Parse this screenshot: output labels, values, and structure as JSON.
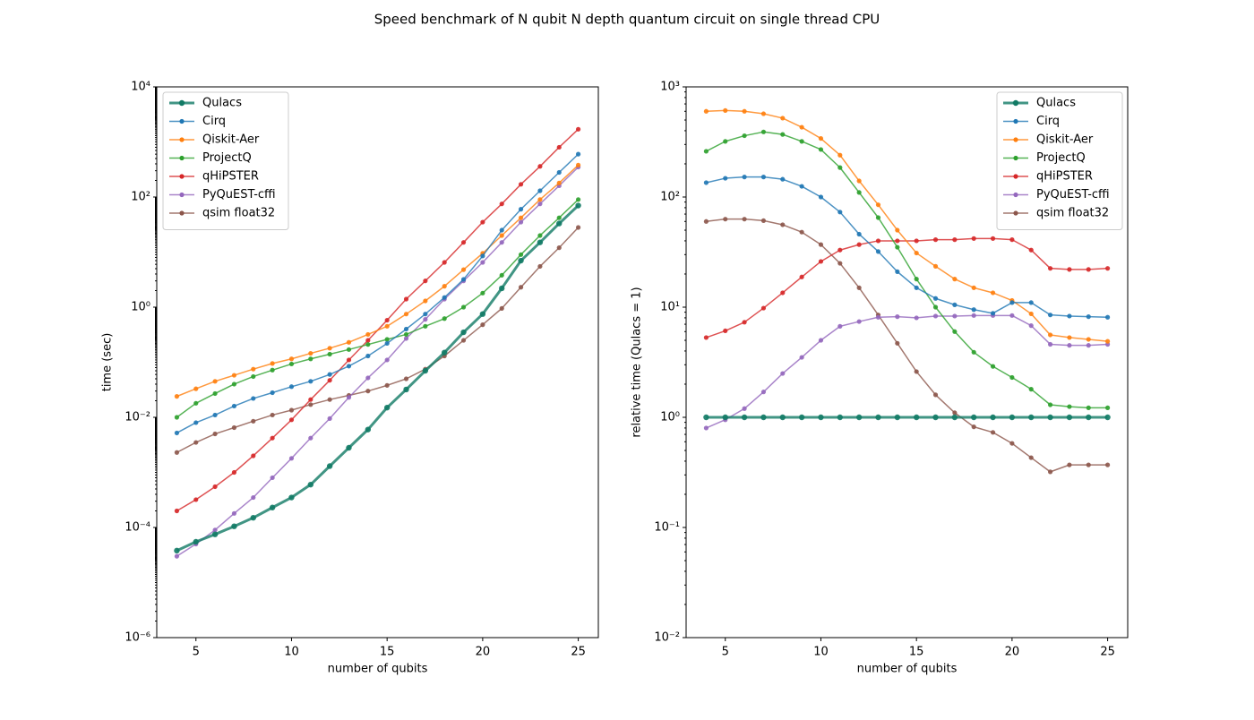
{
  "title": "Speed benchmark of N qubit N depth quantum circuit on single thread CPU",
  "chart_data": [
    {
      "type": "line",
      "log_y": true,
      "legend": "upper left",
      "xlabel": "number of qubits",
      "ylabel": "time (sec)",
      "x": [
        4,
        5,
        6,
        7,
        8,
        9,
        10,
        11,
        12,
        13,
        14,
        15,
        16,
        17,
        18,
        19,
        20,
        21,
        22,
        23,
        24,
        25
      ],
      "xlim": [
        2.95,
        26.05
      ],
      "xticks": [
        5,
        10,
        15,
        20,
        25
      ],
      "ylim": [
        1e-06,
        10000
      ],
      "yticks": [
        {
          "value": 1e-06,
          "label": "10⁻⁶"
        },
        {
          "value": 0.0001,
          "label": "10⁻⁴"
        },
        {
          "value": 0.01,
          "label": "10⁻²"
        },
        {
          "value": 1,
          "label": "10⁰"
        },
        {
          "value": 100,
          "label": "10²"
        },
        {
          "value": 10000,
          "label": "10⁴"
        }
      ],
      "series": [
        {
          "name": "Qulacs",
          "color": "#117a65",
          "line_width": 3,
          "values": [
            3.8e-05,
            5.5e-05,
            7.5e-05,
            0.000105,
            0.00015,
            0.00023,
            0.00035,
            0.0006,
            0.0013,
            0.0028,
            0.006,
            0.015,
            0.032,
            0.07,
            0.15,
            0.35,
            0.75,
            2.2,
            7,
            15,
            33,
            70
          ]
        },
        {
          "name": "Cirq",
          "color": "#1f77b4",
          "line_width": 1.5,
          "values": [
            0.0052,
            0.008,
            0.011,
            0.016,
            0.022,
            0.028,
            0.036,
            0.045,
            0.06,
            0.085,
            0.13,
            0.22,
            0.4,
            0.75,
            1.5,
            3.2,
            8.5,
            25,
            60,
            130,
            280,
            600
          ]
        },
        {
          "name": "Qiskit-Aer",
          "color": "#ff7f0e",
          "line_width": 1.5,
          "values": [
            0.024,
            0.033,
            0.045,
            0.058,
            0.075,
            0.095,
            0.115,
            0.145,
            0.18,
            0.23,
            0.32,
            0.45,
            0.75,
            1.3,
            2.4,
            4.8,
            9.5,
            20,
            42,
            90,
            180,
            380
          ]
        },
        {
          "name": "ProjectQ",
          "color": "#2ca02c",
          "line_width": 1.5,
          "values": [
            0.01,
            0.018,
            0.027,
            0.04,
            0.055,
            0.072,
            0.093,
            0.115,
            0.14,
            0.17,
            0.21,
            0.26,
            0.32,
            0.45,
            0.62,
            1.0,
            1.8,
            3.8,
            9,
            20,
            42,
            90
          ]
        },
        {
          "name": "qHiPSTER",
          "color": "#d62728",
          "line_width": 1.5,
          "values": [
            0.0002,
            0.00032,
            0.00055,
            0.001,
            0.002,
            0.0042,
            0.009,
            0.021,
            0.047,
            0.11,
            0.25,
            0.58,
            1.4,
            3,
            6.5,
            15,
            35,
            75,
            170,
            360,
            800,
            1700
          ]
        },
        {
          "name": "PyQuEST-cffi",
          "color": "#9467bd",
          "line_width": 1.5,
          "values": [
            3e-05,
            5e-05,
            9e-05,
            0.00018,
            0.00035,
            0.0008,
            0.0018,
            0.0042,
            0.0095,
            0.023,
            0.052,
            0.11,
            0.27,
            0.6,
            1.4,
            3,
            6.5,
            15,
            35,
            75,
            160,
            350
          ]
        },
        {
          "name": "qsim float32",
          "color": "#8c564b",
          "line_width": 1.5,
          "values": [
            0.0023,
            0.0035,
            0.005,
            0.0065,
            0.0085,
            0.011,
            0.0135,
            0.017,
            0.021,
            0.025,
            0.03,
            0.038,
            0.05,
            0.075,
            0.13,
            0.25,
            0.48,
            0.95,
            2.3,
            5.5,
            12,
            28
          ]
        }
      ]
    },
    {
      "type": "line",
      "log_y": true,
      "legend": "upper right",
      "xlabel": "number of qubits",
      "ylabel": "relative time (Qulacs = 1)",
      "x": [
        4,
        5,
        6,
        7,
        8,
        9,
        10,
        11,
        12,
        13,
        14,
        15,
        16,
        17,
        18,
        19,
        20,
        21,
        22,
        23,
        24,
        25
      ],
      "xlim": [
        2.95,
        26.05
      ],
      "xticks": [
        5,
        10,
        15,
        20,
        25
      ],
      "ylim": [
        0.01,
        1000
      ],
      "yticks": [
        {
          "value": 0.01,
          "label": "10⁻²"
        },
        {
          "value": 0.1,
          "label": "10⁻¹"
        },
        {
          "value": 1,
          "label": "10⁰"
        },
        {
          "value": 10,
          "label": "10¹"
        },
        {
          "value": 100,
          "label": "10²"
        },
        {
          "value": 1000,
          "label": "10³"
        }
      ],
      "series": [
        {
          "name": "Qulacs",
          "color": "#117a65",
          "line_width": 3,
          "values": [
            1,
            1,
            1,
            1,
            1,
            1,
            1,
            1,
            1,
            1,
            1,
            1,
            1,
            1,
            1,
            1,
            1,
            1,
            1,
            1,
            1,
            1
          ]
        },
        {
          "name": "Cirq",
          "color": "#1f77b4",
          "line_width": 1.5,
          "values": [
            135,
            148,
            152,
            152,
            145,
            125,
            100,
            73,
            46,
            32,
            21,
            15,
            12,
            10.5,
            9.5,
            8.8,
            11,
            11,
            8.5,
            8.3,
            8.2,
            8.1
          ]
        },
        {
          "name": "Qiskit-Aer",
          "color": "#ff7f0e",
          "line_width": 1.5,
          "values": [
            600,
            610,
            600,
            570,
            520,
            430,
            340,
            240,
            140,
            85,
            50,
            31,
            23.5,
            18,
            15,
            13.5,
            11.5,
            8.7,
            5.6,
            5.3,
            5.1,
            4.9
          ]
        },
        {
          "name": "ProjectQ",
          "color": "#2ca02c",
          "line_width": 1.5,
          "values": [
            260,
            320,
            360,
            390,
            370,
            320,
            270,
            185,
            110,
            65,
            35,
            18,
            10,
            6,
            3.9,
            2.9,
            2.3,
            1.8,
            1.3,
            1.25,
            1.22,
            1.22
          ]
        },
        {
          "name": "qHiPSTER",
          "color": "#d62728",
          "line_width": 1.5,
          "values": [
            5.3,
            6.1,
            7.3,
            9.8,
            13.5,
            18.8,
            26,
            33,
            37,
            40,
            40,
            40,
            41,
            41,
            42,
            42,
            41,
            33,
            22.5,
            22,
            22,
            22.5
          ]
        },
        {
          "name": "PyQuEST-cffi",
          "color": "#9467bd",
          "line_width": 1.5,
          "values": [
            0.8,
            0.95,
            1.2,
            1.7,
            2.5,
            3.5,
            5,
            6.7,
            7.4,
            8.1,
            8.2,
            8,
            8.3,
            8.3,
            8.4,
            8.4,
            8.4,
            6.8,
            4.6,
            4.5,
            4.5,
            4.6
          ]
        },
        {
          "name": "qsim float32",
          "color": "#8c564b",
          "line_width": 1.5,
          "values": [
            60,
            63,
            63,
            61,
            56,
            48,
            37,
            25,
            15,
            8.5,
            4.7,
            2.6,
            1.6,
            1.1,
            0.82,
            0.73,
            0.58,
            0.43,
            0.32,
            0.37,
            0.37,
            0.37
          ]
        }
      ]
    }
  ]
}
